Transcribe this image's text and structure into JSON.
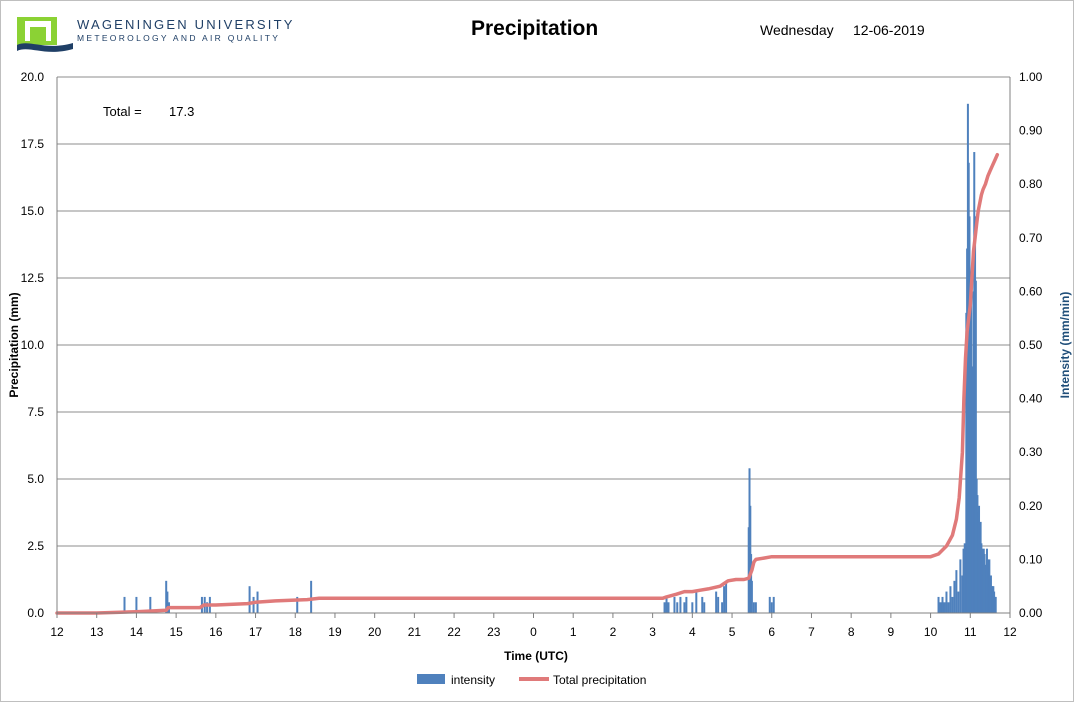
{
  "header": {
    "org_line1": "WAGENINGEN UNIVERSITY",
    "org_line2": "METEOROLOGY AND AIR QUALITY",
    "title": "Precipitation",
    "weekday": "Wednesday",
    "date": "12-06-2019"
  },
  "chart_data": {
    "type": "bar+line",
    "title": "Precipitation",
    "xlabel": "Time (UTC)",
    "ylabel_left": "Precipitation (mm)",
    "ylabel_right": "Intensity (mm/min)",
    "x_ticks": [
      "12",
      "13",
      "14",
      "15",
      "16",
      "17",
      "18",
      "19",
      "20",
      "21",
      "22",
      "23",
      "0",
      "1",
      "2",
      "3",
      "4",
      "5",
      "6",
      "7",
      "8",
      "9",
      "10",
      "11",
      "12"
    ],
    "x_range_hours": [
      0,
      24
    ],
    "y_left_ticks": [
      "0.0",
      "2.5",
      "5.0",
      "7.5",
      "10.0",
      "12.5",
      "15.0",
      "17.5",
      "20.0"
    ],
    "y_left_range": [
      0,
      20
    ],
    "y_right_ticks": [
      "0.00",
      "0.10",
      "0.20",
      "0.30",
      "0.40",
      "0.50",
      "0.60",
      "0.70",
      "0.80",
      "0.90",
      "1.00"
    ],
    "y_right_range": [
      0,
      1
    ],
    "grid": "horizontal",
    "legend_position": "bottom",
    "annotation": {
      "label": "Total =",
      "value": "17.3"
    },
    "series": [
      {
        "name": "intensity",
        "kind": "bar",
        "axis": "right",
        "color": "#4f81bd",
        "note": "x in hours since 12:00 UTC on the shown axis",
        "x": [
          1.7,
          2.0,
          2.35,
          2.75,
          2.78,
          2.82,
          3.65,
          3.72,
          3.78,
          3.85,
          4.85,
          4.95,
          5.05,
          6.05,
          6.4,
          15.3,
          15.35,
          15.4,
          15.55,
          15.62,
          15.7,
          15.8,
          15.85,
          16.0,
          16.1,
          16.25,
          16.3,
          16.6,
          16.65,
          16.75,
          16.8,
          16.85,
          17.42,
          17.44,
          17.46,
          17.48,
          17.5,
          17.55,
          17.6,
          17.95,
          18.0,
          18.05,
          22.2,
          22.25,
          22.3,
          22.35,
          22.4,
          22.45,
          22.5,
          22.55,
          22.6,
          22.65,
          22.7,
          22.75,
          22.8,
          22.83,
          22.86,
          22.88,
          22.9,
          22.92,
          22.94,
          22.96,
          22.98,
          23.0,
          23.02,
          23.04,
          23.06,
          23.08,
          23.1,
          23.12,
          23.14,
          23.16,
          23.18,
          23.2,
          23.22,
          23.24,
          23.26,
          23.28,
          23.3,
          23.32,
          23.34,
          23.36,
          23.38,
          23.4,
          23.42,
          23.44,
          23.46,
          23.48,
          23.5,
          23.52,
          23.54,
          23.56,
          23.58,
          23.6,
          23.62,
          23.64
        ],
        "values": [
          0.03,
          0.03,
          0.03,
          0.06,
          0.04,
          0.02,
          0.03,
          0.03,
          0.02,
          0.03,
          0.05,
          0.03,
          0.04,
          0.03,
          0.06,
          0.02,
          0.03,
          0.02,
          0.03,
          0.02,
          0.03,
          0.02,
          0.03,
          0.02,
          0.04,
          0.03,
          0.02,
          0.04,
          0.03,
          0.02,
          0.05,
          0.06,
          0.16,
          0.27,
          0.2,
          0.11,
          0.06,
          0.02,
          0.02,
          0.03,
          0.02,
          0.03,
          0.03,
          0.02,
          0.03,
          0.02,
          0.04,
          0.02,
          0.05,
          0.03,
          0.06,
          0.08,
          0.04,
          0.1,
          0.07,
          0.12,
          0.13,
          0.09,
          0.56,
          0.68,
          0.95,
          0.84,
          0.74,
          0.62,
          0.6,
          0.44,
          0.46,
          0.6,
          0.86,
          0.74,
          0.62,
          0.25,
          0.22,
          0.19,
          0.2,
          0.13,
          0.17,
          0.13,
          0.12,
          0.07,
          0.12,
          0.11,
          0.09,
          0.08,
          0.12,
          0.1,
          0.09,
          0.1,
          0.07,
          0.07,
          0.05,
          0.05,
          0.05,
          0.04,
          0.03,
          0.03
        ]
      },
      {
        "name": "Total precipitation",
        "kind": "line",
        "axis": "left",
        "color": "#e07a7a",
        "x": [
          0,
          1.0,
          2.0,
          2.75,
          2.8,
          3.6,
          3.7,
          4.0,
          4.8,
          5.0,
          5.5,
          6.3,
          6.6,
          8,
          10,
          12,
          15.0,
          15.25,
          15.35,
          15.6,
          15.8,
          16.0,
          16.2,
          16.4,
          16.7,
          16.8,
          16.9,
          17.1,
          17.3,
          17.42,
          17.5,
          17.55,
          17.6,
          17.8,
          18.0,
          20,
          22,
          22.0,
          22.2,
          22.4,
          22.55,
          22.65,
          22.72,
          22.8,
          22.84,
          22.88,
          22.92,
          22.96,
          23.0,
          23.04,
          23.08,
          23.12,
          23.16,
          23.2,
          23.24,
          23.28,
          23.32,
          23.38,
          23.44,
          23.5,
          23.56,
          23.62,
          23.68
        ],
        "values": [
          0,
          0,
          0.05,
          0.1,
          0.2,
          0.2,
          0.3,
          0.3,
          0.35,
          0.4,
          0.45,
          0.5,
          0.55,
          0.55,
          0.55,
          0.55,
          0.55,
          0.55,
          0.6,
          0.7,
          0.8,
          0.8,
          0.85,
          0.9,
          1.0,
          1.1,
          1.2,
          1.25,
          1.25,
          1.3,
          1.6,
          1.9,
          2.0,
          2.05,
          2.1,
          2.1,
          2.1,
          2.1,
          2.2,
          2.5,
          2.9,
          3.5,
          4.3,
          6.0,
          8.0,
          9.5,
          10.5,
          11.0,
          11.5,
          12.5,
          13.5,
          14.0,
          14.5,
          15.0,
          15.3,
          15.6,
          15.8,
          16.0,
          16.3,
          16.5,
          16.7,
          16.9,
          17.1
        ]
      }
    ]
  },
  "legend": {
    "intensity": "intensity",
    "total": "Total precipitation"
  }
}
